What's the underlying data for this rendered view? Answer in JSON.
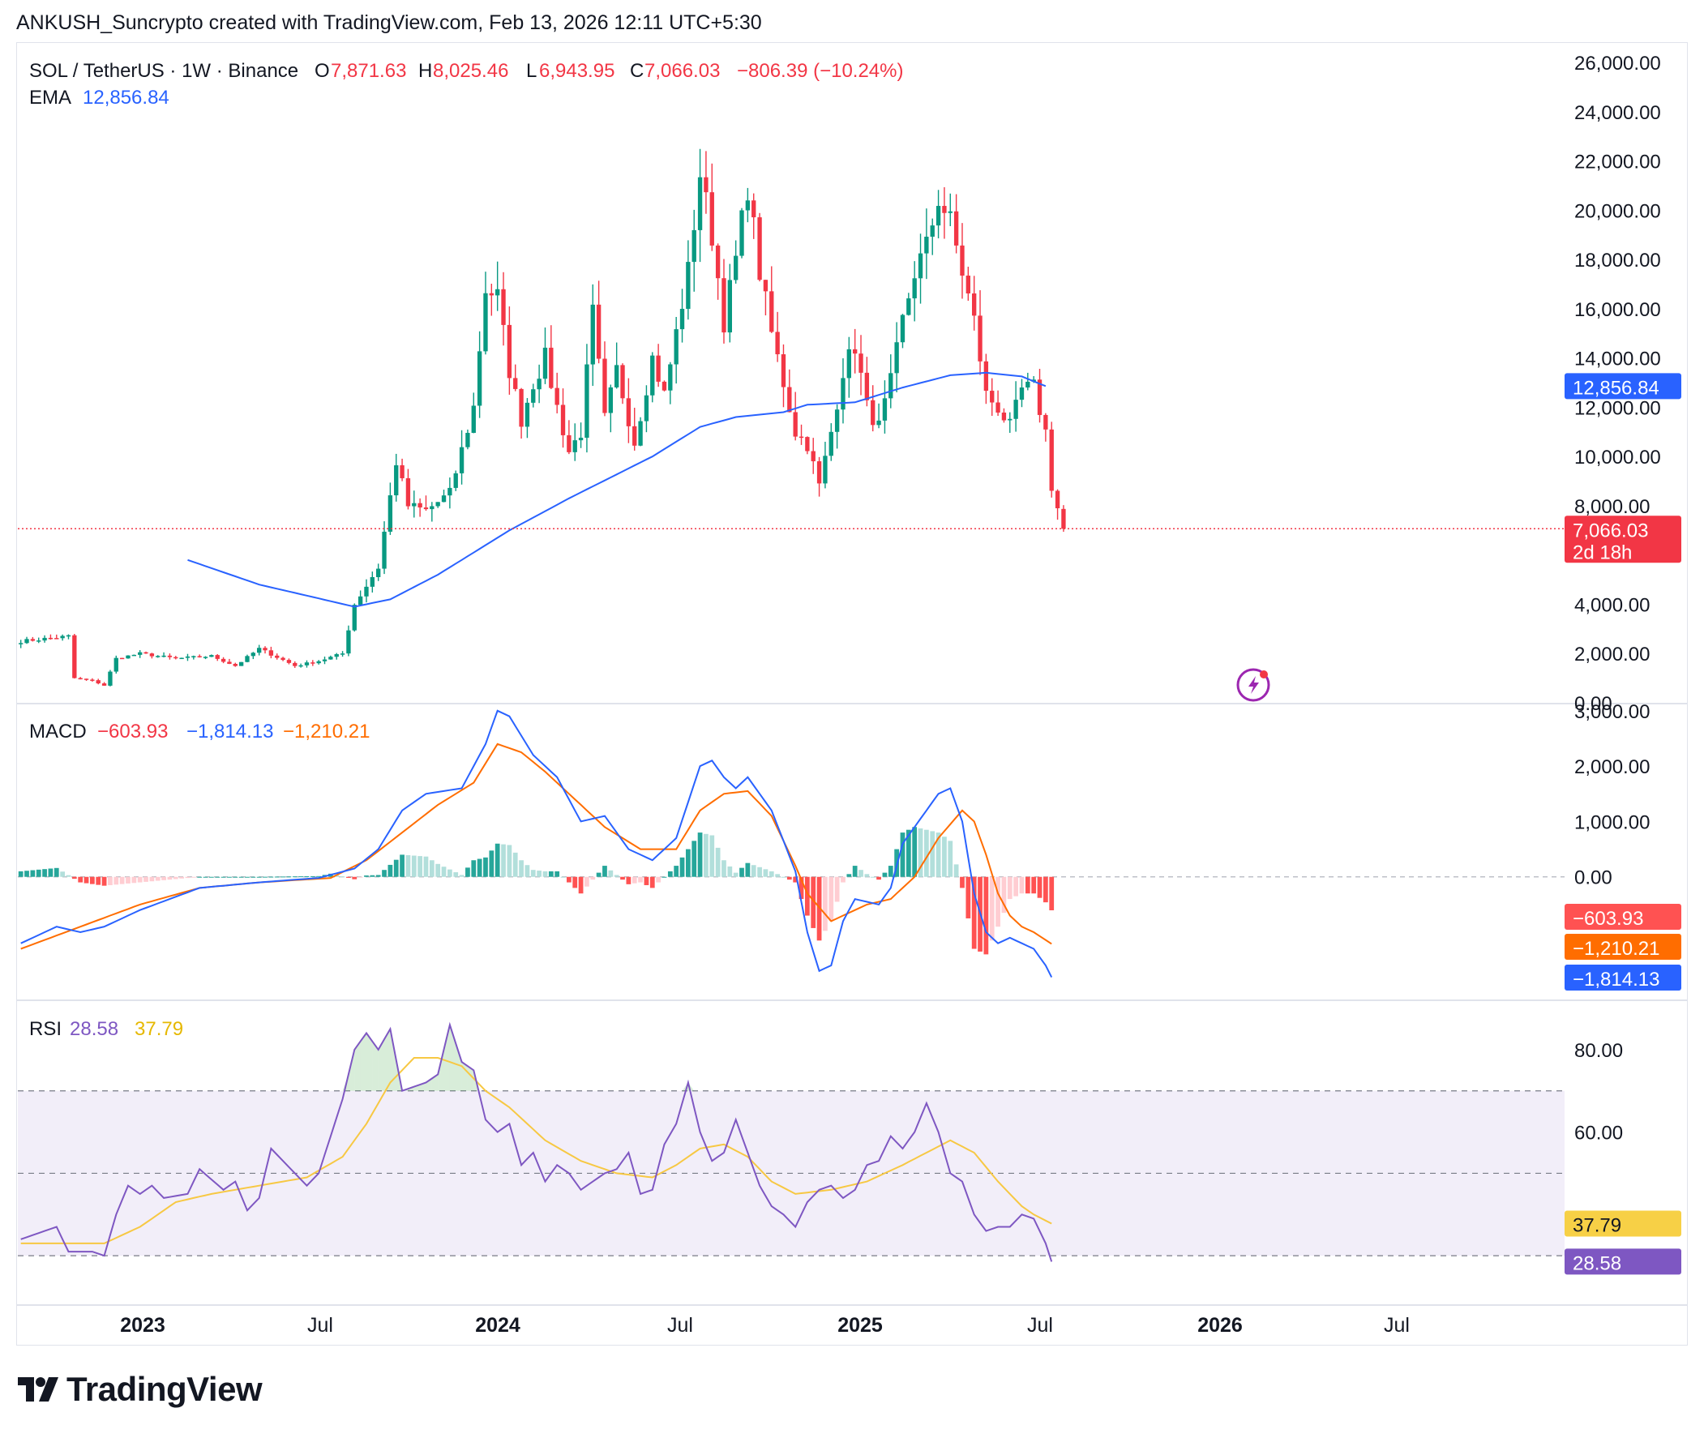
{
  "header": {
    "text": "ANKUSH_Suncrypto created with TradingView.com, Feb 13, 2026 12:11 UTC+5:30"
  },
  "legend": {
    "symbol": "SOL / TetherUS · 1W · Binance",
    "o_label": "O",
    "o_value": "7,871.63",
    "h_label": "H",
    "h_value": "8,025.46",
    "l_label": "L",
    "l_value": "6,943.95",
    "c_label": "C",
    "c_value": "7,066.03",
    "change": "−806.39 (−10.24%)",
    "ema_label": "EMA",
    "ema_value": "12,856.84"
  },
  "macd_legend": {
    "label": "MACD",
    "hist": "−603.93",
    "macd": "−1,814.13",
    "signal": "−1,210.21"
  },
  "rsi_legend": {
    "label": "RSI",
    "rsi": "28.58",
    "ma": "37.79"
  },
  "badges": {
    "price": "7,066.03",
    "countdown": "2d 18h",
    "ema": "12,856.84",
    "macd_hist": "−603.93",
    "macd_signal": "−1,210.21",
    "macd_line": "−1,814.13",
    "rsi_ma": "37.79",
    "rsi": "28.58"
  },
  "colors": {
    "up": "#089981",
    "down": "#f23645",
    "ema": "#2962ff",
    "macd": "#2962ff",
    "signal": "#ff6d00",
    "rsi": "#7e57c2",
    "rsi_ma": "#f7c843",
    "hist_up_strong": "#26a69a",
    "hist_up_weak": "#b2dfdb",
    "hist_down_strong": "#ff5252",
    "hist_down_weak": "#ffcdd2"
  },
  "brand": {
    "name": "TradingView"
  },
  "chart_data": [
    {
      "type": "candlestick",
      "title": "SOL / TetherUS · 1W · Binance",
      "y_ticks": [
        "26,000.00",
        "24,000.00",
        "22,000.00",
        "20,000.00",
        "18,000.00",
        "16,000.00",
        "14,000.00",
        "12,000.00",
        "10,000.00",
        "8,000.00",
        "4,000.00",
        "2,000.00",
        "0.00"
      ],
      "ylim": [
        0,
        26000
      ],
      "x_ticks": [
        "2023",
        "Jul",
        "2024",
        "Jul",
        "2025",
        "Jul",
        "2026",
        "Jul"
      ],
      "start_date": "2022-09-05",
      "period": "1W",
      "close_anchors": [
        [
          0,
          2500
        ],
        [
          4,
          2600
        ],
        [
          8,
          2700
        ],
        [
          9,
          1000
        ],
        [
          12,
          900
        ],
        [
          14,
          700
        ],
        [
          16,
          1800
        ],
        [
          20,
          2000
        ],
        [
          26,
          1800
        ],
        [
          32,
          1900
        ],
        [
          36,
          1500
        ],
        [
          40,
          2200
        ],
        [
          46,
          1500
        ],
        [
          50,
          1700
        ],
        [
          54,
          2000
        ],
        [
          56,
          4000
        ],
        [
          60,
          5500
        ],
        [
          63,
          9800
        ],
        [
          65,
          8000
        ],
        [
          68,
          7800
        ],
        [
          72,
          8500
        ],
        [
          76,
          12000
        ],
        [
          78,
          16800
        ],
        [
          80,
          16500
        ],
        [
          82,
          13500
        ],
        [
          84,
          11500
        ],
        [
          86,
          13000
        ],
        [
          88,
          14000
        ],
        [
          90,
          12000
        ],
        [
          92,
          10200
        ],
        [
          94,
          11000
        ],
        [
          96,
          15800
        ],
        [
          98,
          11500
        ],
        [
          100,
          13500
        ],
        [
          103,
          10600
        ],
        [
          106,
          14000
        ],
        [
          108,
          12500
        ],
        [
          112,
          17500
        ],
        [
          114,
          21500
        ],
        [
          116,
          19000
        ],
        [
          118,
          15500
        ],
        [
          120,
          18000
        ],
        [
          122,
          21000
        ],
        [
          124,
          17500
        ],
        [
          126,
          15000
        ],
        [
          130,
          11000
        ],
        [
          132,
          10500
        ],
        [
          134,
          8800
        ],
        [
          136,
          11000
        ],
        [
          138,
          13500
        ],
        [
          140,
          14500
        ],
        [
          142,
          12000
        ],
        [
          144,
          11200
        ],
        [
          146,
          13000
        ],
        [
          148,
          15500
        ],
        [
          150,
          17500
        ],
        [
          152,
          18500
        ],
        [
          154,
          20500
        ],
        [
          156,
          19500
        ],
        [
          158,
          17500
        ],
        [
          160,
          15500
        ],
        [
          162,
          12500
        ],
        [
          164,
          12000
        ],
        [
          166,
          11200
        ],
        [
          168,
          12700
        ],
        [
          170,
          12800
        ],
        [
          172,
          11000
        ],
        [
          173,
          8800
        ],
        [
          174,
          7900
        ],
        [
          175,
          7066
        ]
      ],
      "last_candle": {
        "open": 7871.63,
        "high": 8025.46,
        "low": 6943.95,
        "close": 7066.03
      },
      "ema_anchors": [
        [
          28,
          5800
        ],
        [
          40,
          4800
        ],
        [
          56,
          3900
        ],
        [
          62,
          4200
        ],
        [
          70,
          5200
        ],
        [
          82,
          7000
        ],
        [
          92,
          8300
        ],
        [
          106,
          10000
        ],
        [
          114,
          11200
        ],
        [
          120,
          11600
        ],
        [
          128,
          11800
        ],
        [
          132,
          12100
        ],
        [
          140,
          12200
        ],
        [
          148,
          12800
        ],
        [
          156,
          13300
        ],
        [
          162,
          13400
        ],
        [
          168,
          13250
        ],
        [
          172,
          12856.84
        ]
      ],
      "ema": {
        "name": "EMA",
        "last": 12856.84
      },
      "current_price": 7066.03
    },
    {
      "type": "macd",
      "y_ticks": [
        "3,000.00",
        "2,000.00",
        "1,000.00",
        "0.00"
      ],
      "ylim": [
        -2200,
        3100
      ],
      "macd_anchors": [
        [
          0,
          -1200
        ],
        [
          6,
          -900
        ],
        [
          10,
          -1000
        ],
        [
          14,
          -900
        ],
        [
          20,
          -600
        ],
        [
          30,
          -200
        ],
        [
          40,
          -100
        ],
        [
          50,
          -20
        ],
        [
          56,
          150
        ],
        [
          60,
          500
        ],
        [
          64,
          1200
        ],
        [
          68,
          1500
        ],
        [
          74,
          1600
        ],
        [
          78,
          2400
        ],
        [
          80,
          3000
        ],
        [
          82,
          2900
        ],
        [
          86,
          2200
        ],
        [
          90,
          1800
        ],
        [
          94,
          1000
        ],
        [
          98,
          1100
        ],
        [
          102,
          500
        ],
        [
          106,
          300
        ],
        [
          110,
          700
        ],
        [
          114,
          2000
        ],
        [
          116,
          2100
        ],
        [
          118,
          1800
        ],
        [
          120,
          1600
        ],
        [
          122,
          1800
        ],
        [
          126,
          1200
        ],
        [
          130,
          100
        ],
        [
          132,
          -1000
        ],
        [
          134,
          -1700
        ],
        [
          136,
          -1600
        ],
        [
          138,
          -800
        ],
        [
          140,
          -400
        ],
        [
          144,
          -500
        ],
        [
          146,
          -200
        ],
        [
          148,
          600
        ],
        [
          150,
          900
        ],
        [
          154,
          1500
        ],
        [
          156,
          1600
        ],
        [
          158,
          1000
        ],
        [
          160,
          -300
        ],
        [
          162,
          -1000
        ],
        [
          164,
          -1200
        ],
        [
          166,
          -1100
        ],
        [
          168,
          -1200
        ],
        [
          170,
          -1300
        ],
        [
          172,
          -1600
        ],
        [
          173,
          -1814.13
        ]
      ],
      "signal_anchors": [
        [
          0,
          -1300
        ],
        [
          10,
          -900
        ],
        [
          20,
          -500
        ],
        [
          30,
          -200
        ],
        [
          40,
          -100
        ],
        [
          52,
          -20
        ],
        [
          58,
          300
        ],
        [
          64,
          800
        ],
        [
          70,
          1300
        ],
        [
          76,
          1700
        ],
        [
          80,
          2400
        ],
        [
          84,
          2250
        ],
        [
          88,
          1900
        ],
        [
          94,
          1300
        ],
        [
          98,
          900
        ],
        [
          104,
          500
        ],
        [
          110,
          500
        ],
        [
          114,
          1200
        ],
        [
          118,
          1500
        ],
        [
          122,
          1550
        ],
        [
          126,
          1100
        ],
        [
          130,
          200
        ],
        [
          132,
          -300
        ],
        [
          136,
          -800
        ],
        [
          138,
          -700
        ],
        [
          142,
          -500
        ],
        [
          146,
          -400
        ],
        [
          150,
          0
        ],
        [
          154,
          700
        ],
        [
          158,
          1200
        ],
        [
          160,
          1000
        ],
        [
          162,
          400
        ],
        [
          164,
          -300
        ],
        [
          166,
          -700
        ],
        [
          168,
          -900
        ],
        [
          170,
          -1000
        ],
        [
          173,
          -1210.21
        ]
      ],
      "legend": {
        "histogram": -603.93,
        "macd": -1814.13,
        "signal": -1210.21
      }
    },
    {
      "type": "rsi",
      "y_ticks": [
        "80.00",
        "60.00"
      ],
      "ylim": [
        20,
        90
      ],
      "band": [
        30,
        70
      ],
      "midline": 50,
      "rsi_anchors": [
        [
          0,
          34
        ],
        [
          6,
          37
        ],
        [
          8,
          31
        ],
        [
          12,
          31
        ],
        [
          14,
          30
        ],
        [
          16,
          40
        ],
        [
          18,
          47
        ],
        [
          20,
          45
        ],
        [
          22,
          47
        ],
        [
          24,
          44
        ],
        [
          28,
          45
        ],
        [
          30,
          51
        ],
        [
          34,
          46
        ],
        [
          36,
          48
        ],
        [
          38,
          41
        ],
        [
          40,
          44
        ],
        [
          42,
          56
        ],
        [
          46,
          50
        ],
        [
          48,
          47
        ],
        [
          50,
          50
        ],
        [
          54,
          68
        ],
        [
          56,
          80
        ],
        [
          58,
          84
        ],
        [
          60,
          80
        ],
        [
          62,
          85
        ],
        [
          64,
          70
        ],
        [
          68,
          72
        ],
        [
          70,
          74
        ],
        [
          72,
          86
        ],
        [
          74,
          77
        ],
        [
          76,
          75
        ],
        [
          78,
          63
        ],
        [
          80,
          60
        ],
        [
          82,
          62
        ],
        [
          84,
          52
        ],
        [
          86,
          55
        ],
        [
          88,
          48
        ],
        [
          90,
          52
        ],
        [
          92,
          50
        ],
        [
          94,
          46
        ],
        [
          98,
          50
        ],
        [
          100,
          51
        ],
        [
          102,
          55
        ],
        [
          104,
          45
        ],
        [
          106,
          46
        ],
        [
          108,
          57
        ],
        [
          110,
          62
        ],
        [
          112,
          72
        ],
        [
          114,
          60
        ],
        [
          116,
          53
        ],
        [
          118,
          55
        ],
        [
          120,
          63
        ],
        [
          122,
          55
        ],
        [
          124,
          47
        ],
        [
          126,
          42
        ],
        [
          128,
          40
        ],
        [
          130,
          37
        ],
        [
          132,
          43
        ],
        [
          134,
          46
        ],
        [
          136,
          47
        ],
        [
          138,
          44
        ],
        [
          140,
          46
        ],
        [
          142,
          52
        ],
        [
          144,
          53
        ],
        [
          146,
          59
        ],
        [
          148,
          56
        ],
        [
          150,
          60
        ],
        [
          152,
          67
        ],
        [
          154,
          60
        ],
        [
          156,
          50
        ],
        [
          158,
          48
        ],
        [
          160,
          40
        ],
        [
          162,
          36
        ],
        [
          164,
          37
        ],
        [
          166,
          37
        ],
        [
          168,
          40
        ],
        [
          170,
          39
        ],
        [
          172,
          33
        ],
        [
          173,
          28.58
        ]
      ],
      "ma_anchors": [
        [
          0,
          33
        ],
        [
          14,
          33
        ],
        [
          20,
          37
        ],
        [
          26,
          43
        ],
        [
          32,
          45
        ],
        [
          40,
          47
        ],
        [
          48,
          49
        ],
        [
          54,
          54
        ],
        [
          58,
          62
        ],
        [
          62,
          72
        ],
        [
          66,
          78
        ],
        [
          70,
          78
        ],
        [
          74,
          76
        ],
        [
          78,
          70
        ],
        [
          82,
          66
        ],
        [
          88,
          58
        ],
        [
          94,
          53
        ],
        [
          100,
          50
        ],
        [
          106,
          49
        ],
        [
          110,
          52
        ],
        [
          114,
          56
        ],
        [
          118,
          57
        ],
        [
          122,
          54
        ],
        [
          126,
          48
        ],
        [
          130,
          45
        ],
        [
          136,
          46
        ],
        [
          142,
          48
        ],
        [
          148,
          52
        ],
        [
          152,
          55
        ],
        [
          156,
          58
        ],
        [
          160,
          55
        ],
        [
          164,
          48
        ],
        [
          168,
          42
        ],
        [
          170,
          40
        ],
        [
          173,
          37.79
        ]
      ],
      "legend": {
        "rsi": 28.58,
        "ma": 37.79
      }
    }
  ]
}
